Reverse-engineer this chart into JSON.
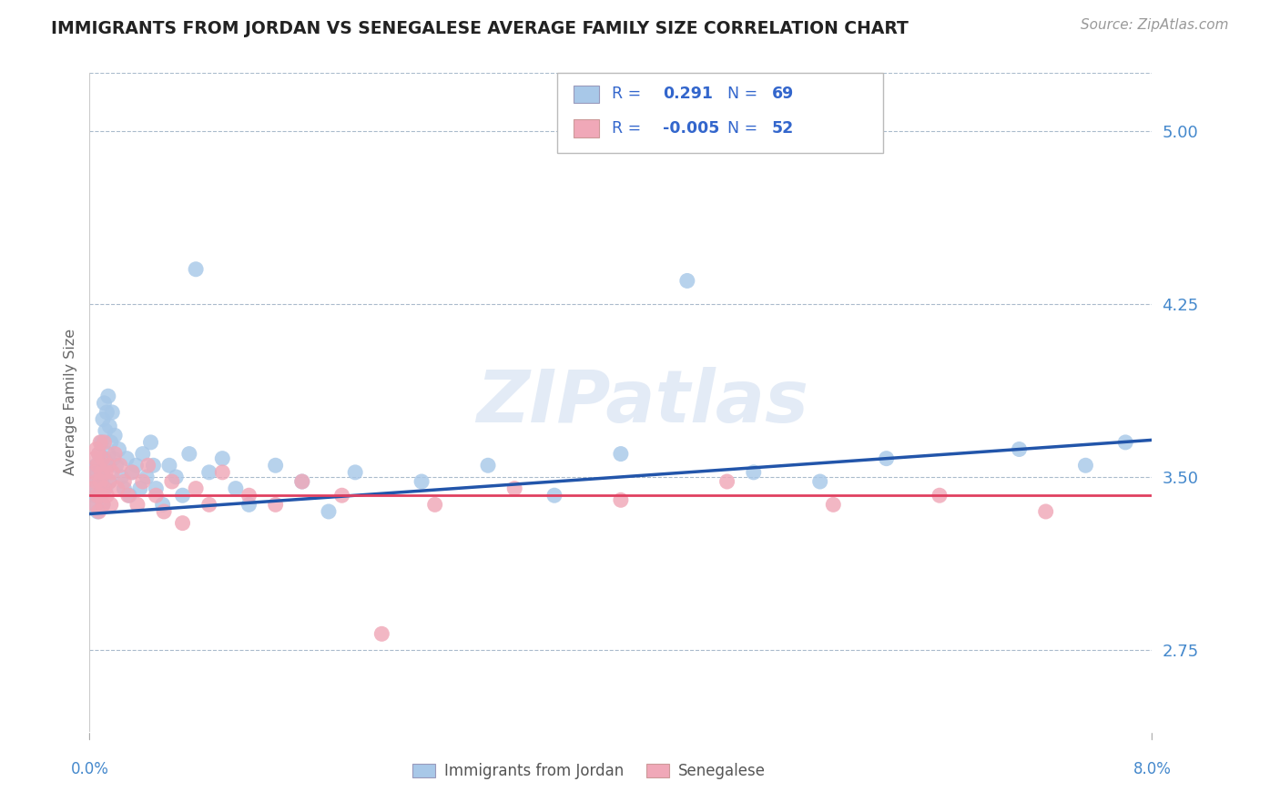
{
  "title": "IMMIGRANTS FROM JORDAN VS SENEGALESE AVERAGE FAMILY SIZE CORRELATION CHART",
  "source": "Source: ZipAtlas.com",
  "ylabel": "Average Family Size",
  "yticks": [
    2.75,
    3.5,
    4.25,
    5.0
  ],
  "xmin": 0.0,
  "xmax": 8.0,
  "ymin": 2.4,
  "ymax": 5.25,
  "watermark": "ZIPatlas",
  "series1_label": "Immigrants from Jordan",
  "series2_label": "Senegalese",
  "color_blue_scatter": "#A8C8E8",
  "color_pink_scatter": "#F0A8B8",
  "color_blue_line": "#2255AA",
  "color_pink_line": "#E04060",
  "legend_text_color": "#3366CC",
  "title_color": "#222222",
  "source_color": "#999999",
  "tick_color": "#4488CC",
  "ylabel_color": "#666666",
  "background_color": "#FFFFFF",
  "grid_color": "#AABBCC",
  "jordan_x": [
    0.03,
    0.04,
    0.04,
    0.05,
    0.05,
    0.06,
    0.06,
    0.07,
    0.07,
    0.08,
    0.08,
    0.09,
    0.09,
    0.1,
    0.1,
    0.1,
    0.11,
    0.11,
    0.12,
    0.12,
    0.13,
    0.13,
    0.14,
    0.14,
    0.15,
    0.15,
    0.16,
    0.17,
    0.18,
    0.19,
    0.2,
    0.22,
    0.24,
    0.26,
    0.28,
    0.3,
    0.32,
    0.35,
    0.38,
    0.4,
    0.43,
    0.46,
    0.48,
    0.5,
    0.55,
    0.6,
    0.65,
    0.7,
    0.75,
    0.8,
    0.9,
    1.0,
    1.1,
    1.2,
    1.4,
    1.6,
    1.8,
    2.0,
    2.5,
    3.0,
    3.5,
    4.0,
    4.5,
    5.0,
    5.5,
    6.0,
    7.0,
    7.5,
    7.8
  ],
  "jordan_y": [
    3.42,
    3.5,
    3.38,
    3.45,
    3.55,
    3.52,
    3.35,
    3.48,
    3.6,
    3.42,
    3.55,
    3.65,
    3.48,
    3.75,
    3.52,
    3.38,
    3.82,
    3.58,
    3.7,
    3.45,
    3.78,
    3.55,
    3.85,
    3.6,
    3.72,
    3.48,
    3.65,
    3.78,
    3.58,
    3.68,
    3.55,
    3.62,
    3.5,
    3.45,
    3.58,
    3.42,
    3.52,
    3.55,
    3.45,
    3.6,
    3.5,
    3.65,
    3.55,
    3.45,
    3.38,
    3.55,
    3.5,
    3.42,
    3.6,
    4.4,
    3.52,
    3.58,
    3.45,
    3.38,
    3.55,
    3.48,
    3.35,
    3.52,
    3.48,
    3.55,
    3.42,
    3.6,
    4.35,
    3.52,
    3.48,
    3.58,
    3.62,
    3.55,
    3.65
  ],
  "senegal_x": [
    0.02,
    0.03,
    0.04,
    0.04,
    0.05,
    0.05,
    0.06,
    0.06,
    0.07,
    0.07,
    0.08,
    0.08,
    0.09,
    0.09,
    0.1,
    0.1,
    0.11,
    0.11,
    0.12,
    0.13,
    0.14,
    0.15,
    0.16,
    0.17,
    0.19,
    0.21,
    0.23,
    0.26,
    0.29,
    0.32,
    0.36,
    0.4,
    0.44,
    0.5,
    0.56,
    0.62,
    0.7,
    0.8,
    0.9,
    1.0,
    1.2,
    1.4,
    1.6,
    1.9,
    2.2,
    2.6,
    3.2,
    4.0,
    4.8,
    5.6,
    6.4,
    7.2
  ],
  "senegal_y": [
    3.45,
    3.52,
    3.38,
    3.58,
    3.48,
    3.62,
    3.42,
    3.55,
    3.35,
    3.6,
    3.48,
    3.65,
    3.42,
    3.52,
    3.58,
    3.38,
    3.65,
    3.45,
    3.52,
    3.42,
    3.55,
    3.48,
    3.38,
    3.52,
    3.6,
    3.45,
    3.55,
    3.48,
    3.42,
    3.52,
    3.38,
    3.48,
    3.55,
    3.42,
    3.35,
    3.48,
    3.3,
    3.45,
    3.38,
    3.52,
    3.42,
    3.38,
    3.48,
    3.42,
    2.82,
    3.38,
    3.45,
    3.4,
    3.48,
    3.38,
    3.42,
    3.35
  ],
  "blue_trend_start_y": 3.34,
  "blue_trend_end_y": 3.66,
  "pink_trend_y": 3.42
}
